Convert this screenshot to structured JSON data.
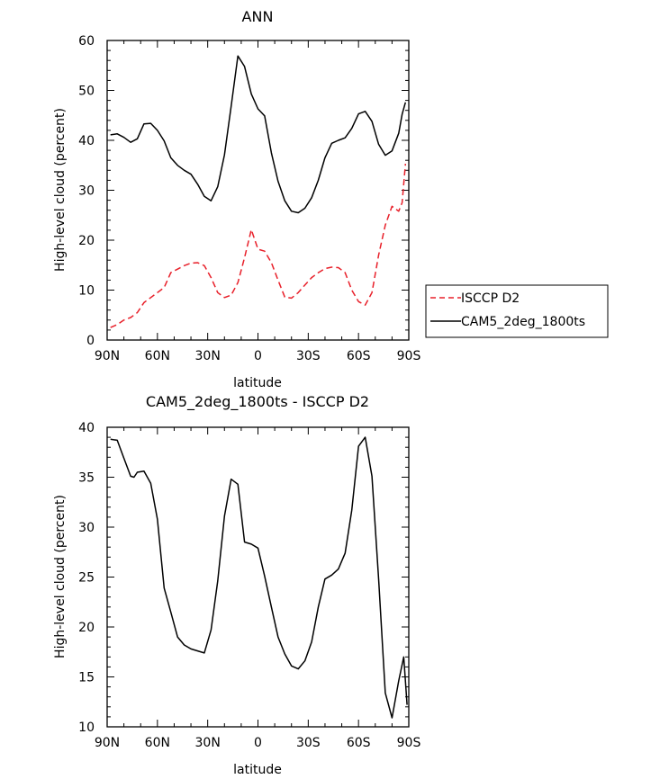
{
  "chart_data": [
    {
      "type": "line",
      "title": "ANN",
      "xlabel": "latitude",
      "ylabel": "High-level cloud (percent)",
      "xlim": [
        90,
        -90
      ],
      "ylim": [
        0,
        60
      ],
      "xticks": [
        90,
        60,
        30,
        0,
        -30,
        -60,
        -90
      ],
      "xticklabels": [
        "90N",
        "60N",
        "30N",
        "0",
        "30S",
        "60S",
        "90S"
      ],
      "yticks": [
        0,
        10,
        20,
        30,
        40,
        50,
        60
      ],
      "yticklabels": [
        "0",
        "10",
        "20",
        "30",
        "40",
        "50",
        "60"
      ],
      "legend": "outside-right",
      "series": [
        {
          "name": "ISCCP D2",
          "color": "#e8202a",
          "dash": "dashed",
          "x": [
            88,
            84,
            80,
            76,
            72,
            68,
            64,
            60,
            56,
            52,
            48,
            44,
            40,
            36,
            32,
            28,
            24,
            20,
            16,
            12,
            8,
            4,
            0,
            -4,
            -8,
            -12,
            -16,
            -20,
            -24,
            -28,
            -32,
            -36,
            -40,
            -44,
            -48,
            -52,
            -56,
            -60,
            -64,
            -68,
            -72,
            -76,
            -80,
            -84,
            -86,
            -88
          ],
          "y": [
            2.5,
            3.1,
            4.0,
            4.5,
            5.5,
            7.5,
            8.5,
            9.5,
            10.5,
            13.5,
            14.2,
            14.9,
            15.4,
            15.5,
            14.9,
            12.5,
            9.5,
            8.5,
            9.0,
            11.5,
            16.5,
            22.1,
            18.2,
            17.8,
            15.5,
            12.0,
            8.6,
            8.4,
            9.5,
            11.0,
            12.5,
            13.5,
            14.3,
            14.6,
            14.5,
            13.5,
            10.0,
            7.7,
            7.0,
            9.5,
            17.0,
            23.0,
            26.8,
            25.8,
            27.5,
            35.3
          ]
        },
        {
          "name": "CAM5_2deg_1800ts",
          "color": "#000000",
          "dash": "solid",
          "x": [
            88,
            84,
            80,
            76,
            72,
            68,
            64,
            60,
            56,
            52,
            48,
            44,
            40,
            36,
            32,
            28,
            24,
            20,
            16,
            12,
            8,
            4,
            0,
            -4,
            -8,
            -12,
            -16,
            -20,
            -24,
            -28,
            -32,
            -36,
            -40,
            -44,
            -48,
            -52,
            -56,
            -60,
            -64,
            -68,
            -72,
            -76,
            -80,
            -84,
            -86,
            -88
          ],
          "y": [
            41.1,
            41.3,
            40.6,
            39.6,
            40.3,
            43.3,
            43.4,
            42.0,
            39.9,
            36.5,
            35.0,
            34.0,
            33.2,
            31.2,
            28.8,
            27.9,
            30.7,
            37.1,
            46.8,
            56.9,
            54.8,
            49.3,
            46.3,
            44.9,
            37.5,
            31.8,
            27.9,
            25.8,
            25.5,
            26.4,
            28.5,
            32.0,
            36.5,
            39.4,
            40.0,
            40.5,
            42.4,
            45.3,
            45.8,
            43.8,
            39.2,
            37.0,
            37.9,
            41.4,
            45.2,
            47.6
          ]
        }
      ]
    },
    {
      "type": "line",
      "title": "CAM5_2deg_1800ts - ISCCP D2",
      "xlabel": "latitude",
      "ylabel": "High-level cloud (percent)",
      "xlim": [
        90,
        -90
      ],
      "ylim": [
        10,
        40
      ],
      "xticks": [
        90,
        60,
        30,
        0,
        -30,
        -60,
        -90
      ],
      "xticklabels": [
        "90N",
        "60N",
        "30N",
        "0",
        "30S",
        "60S",
        "90S"
      ],
      "yticks": [
        10,
        15,
        20,
        25,
        30,
        35,
        40
      ],
      "yticklabels": [
        "10",
        "15",
        "20",
        "25",
        "30",
        "35",
        "40"
      ],
      "series": [
        {
          "color": "#000000",
          "dash": "solid",
          "x": [
            88,
            84,
            80,
            76,
            74,
            72,
            68,
            64,
            60,
            56,
            52,
            48,
            44,
            40,
            36,
            32,
            28,
            24,
            20,
            16,
            12,
            8,
            4,
            0,
            -4,
            -8,
            -12,
            -16,
            -20,
            -24,
            -28,
            -32,
            -36,
            -40,
            -44,
            -48,
            -52,
            -56,
            -60,
            -64,
            -68,
            -72,
            -76,
            -80,
            -84,
            -87,
            -89
          ],
          "y": [
            38.8,
            38.7,
            36.9,
            35.1,
            35.0,
            35.5,
            35.6,
            34.4,
            30.8,
            23.9,
            21.5,
            19.0,
            18.2,
            17.8,
            17.6,
            17.4,
            19.7,
            24.6,
            31.1,
            34.8,
            34.3,
            28.5,
            28.3,
            27.9,
            25.1,
            22.0,
            19.0,
            17.3,
            16.1,
            15.8,
            16.6,
            18.5,
            22.0,
            24.8,
            25.2,
            25.8,
            27.4,
            31.7,
            38.1,
            39.0,
            35.1,
            24.8,
            13.4,
            10.9,
            14.6,
            17.0,
            12.2
          ]
        }
      ]
    }
  ]
}
